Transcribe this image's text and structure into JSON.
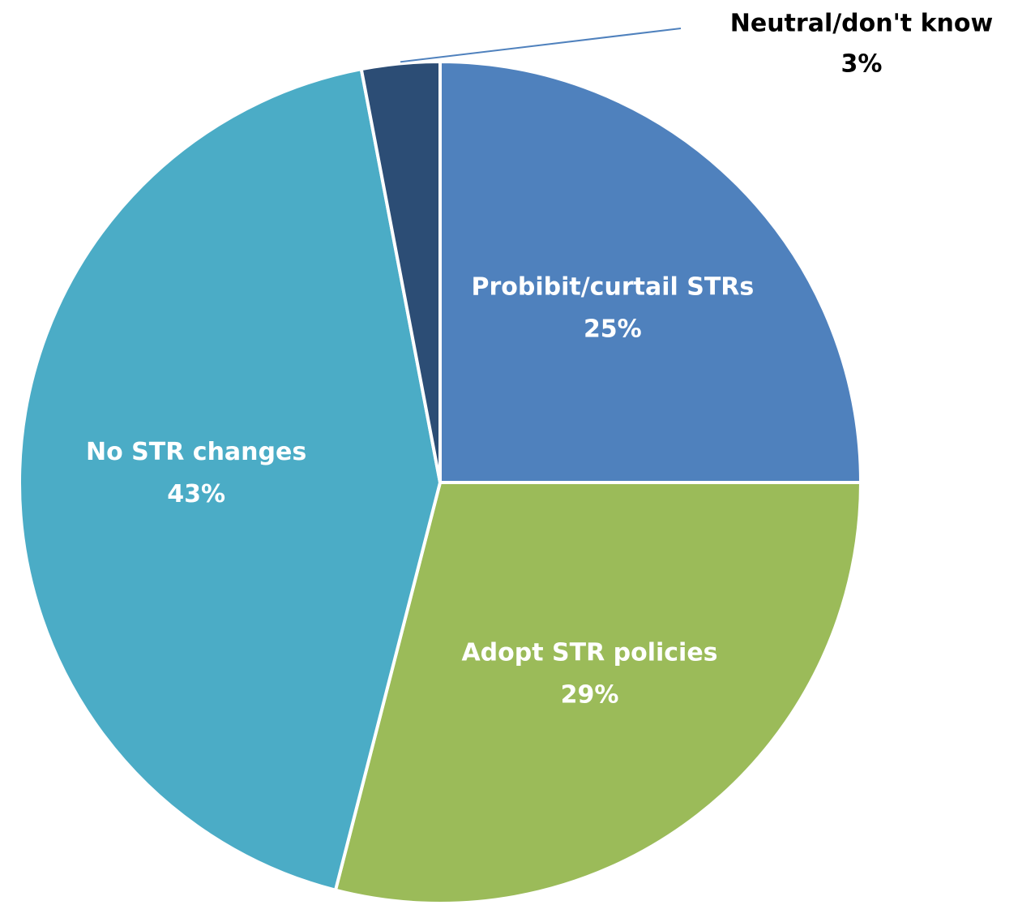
{
  "chart_data": {
    "type": "pie",
    "categories": [
      "Probibit/curtail STRs",
      "Adopt STR policies",
      "No STR changes",
      "Neutral/don't know"
    ],
    "values": [
      25,
      29,
      43,
      3
    ],
    "value_labels": [
      "25%",
      "29%",
      "43%",
      "3%"
    ],
    "colors": [
      "#4f81bd",
      "#9bbb59",
      "#4bacc6",
      "#2c4d75"
    ]
  }
}
